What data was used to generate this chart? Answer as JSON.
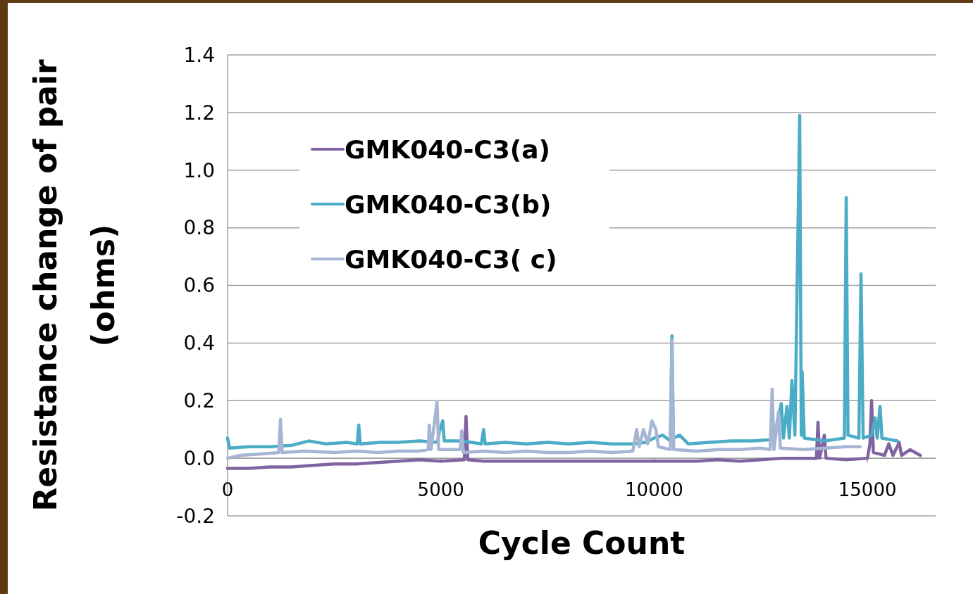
{
  "chart_data": {
    "type": "line",
    "xlabel": "Cycle Count",
    "ylabel": "Resistance change of pair\n(ohms)",
    "xlim": [
      0,
      16600
    ],
    "xticks": [
      0,
      5000,
      10000,
      15000
    ],
    "ylim": [
      -0.2,
      1.4
    ],
    "yticks": [
      {
        "value": -0.2,
        "label": "-0.2"
      },
      {
        "value": 0,
        "label": "0.0"
      },
      {
        "value": 0.2,
        "label": "0.2"
      },
      {
        "value": 0.4,
        "label": "0.4"
      },
      {
        "value": 0.6,
        "label": "0.6"
      },
      {
        "value": 0.8,
        "label": "0.8"
      },
      {
        "value": 1.0,
        "label": "1.0"
      },
      {
        "value": 1.2,
        "label": "1.2"
      },
      {
        "value": 1.4,
        "label": "1.4"
      }
    ],
    "grid": "y",
    "legend": "top left",
    "marker": "none",
    "line_style": "solid",
    "series": [
      {
        "name": "GMK040-C3(a)",
        "color": "#8064a2",
        "x": [
          0,
          500,
          1000,
          1500,
          2000,
          2500,
          3000,
          3500,
          4000,
          4500,
          5000,
          5550,
          5590,
          5630,
          6000,
          7000,
          8000,
          9000,
          10000,
          11000,
          11500,
          12000,
          12500,
          13000,
          13500,
          13805,
          13842,
          13880,
          13990,
          14030,
          14500,
          15000,
          15060,
          15098,
          15140,
          15400,
          15500,
          15600,
          15744,
          15800,
          16000,
          16240
        ],
        "values": [
          -0.035,
          -0.035,
          -0.03,
          -0.03,
          -0.025,
          -0.02,
          -0.02,
          -0.015,
          -0.01,
          -0.005,
          -0.01,
          -0.005,
          0.145,
          -0.005,
          -0.01,
          -0.01,
          -0.01,
          -0.01,
          -0.01,
          -0.01,
          -0.005,
          -0.01,
          -0.005,
          0.0,
          0.0,
          0.0,
          0.125,
          0.0,
          0.08,
          0.0,
          -0.005,
          0.0,
          0.05,
          0.2,
          0.02,
          0.01,
          0.05,
          0.01,
          0.055,
          0.01,
          0.03,
          0.01
        ]
      },
      {
        "name": "GMK040-C3(b)",
        "color": "#4bacc6",
        "x": [
          0,
          50,
          500,
          1000,
          1500,
          1900,
          2300,
          2800,
          3040,
          3076,
          3110,
          3600,
          4000,
          4500,
          4920,
          4960,
          5044,
          5080,
          5500,
          5950,
          6003,
          6040,
          6500,
          7000,
          7500,
          8000,
          8500,
          9000,
          9500,
          9800,
          10000,
          10200,
          10380,
          10418,
          10450,
          10600,
          10800,
          11300,
          11800,
          12300,
          12800,
          12982,
          13030,
          13114,
          13170,
          13230,
          13300,
          13412,
          13450,
          13470,
          13520,
          14000,
          14460,
          14503,
          14545,
          14800,
          14850,
          14900,
          15100,
          15180,
          15230,
          15297,
          15340,
          15700
        ],
        "values": [
          0.07,
          0.035,
          0.04,
          0.04,
          0.045,
          0.06,
          0.05,
          0.055,
          0.05,
          0.115,
          0.05,
          0.055,
          0.055,
          0.06,
          0.055,
          0.09,
          0.13,
          0.06,
          0.06,
          0.05,
          0.1,
          0.05,
          0.055,
          0.05,
          0.055,
          0.05,
          0.055,
          0.05,
          0.05,
          0.055,
          0.07,
          0.08,
          0.06,
          0.425,
          0.07,
          0.08,
          0.05,
          0.055,
          0.06,
          0.06,
          0.065,
          0.19,
          0.07,
          0.18,
          0.07,
          0.27,
          0.08,
          1.19,
          0.08,
          0.3,
          0.07,
          0.06,
          0.07,
          0.905,
          0.08,
          0.07,
          0.64,
          0.07,
          0.08,
          0.14,
          0.07,
          0.18,
          0.07,
          0.06
        ]
      },
      {
        "name": "GMK040-C3( c)",
        "color": "#a5b5d3",
        "x": [
          0,
          300,
          800,
          1200,
          1240,
          1280,
          1800,
          2500,
          3000,
          3500,
          4000,
          4500,
          4700,
          4730,
          4770,
          4910,
          4950,
          5450,
          5490,
          5530,
          6000,
          6500,
          7000,
          7500,
          8000,
          8500,
          9000,
          9500,
          9590,
          9650,
          9750,
          9850,
          9950,
          10040,
          10100,
          10380,
          10418,
          10460,
          11000,
          11500,
          12000,
          12500,
          12720,
          12767,
          12810,
          12915,
          12960,
          13500,
          14000,
          14500,
          14830
        ],
        "values": [
          0.0,
          0.01,
          0.015,
          0.02,
          0.135,
          0.02,
          0.025,
          0.02,
          0.025,
          0.02,
          0.025,
          0.025,
          0.03,
          0.115,
          0.03,
          0.195,
          0.03,
          0.03,
          0.095,
          0.02,
          0.025,
          0.02,
          0.025,
          0.02,
          0.02,
          0.025,
          0.02,
          0.025,
          0.1,
          0.04,
          0.1,
          0.05,
          0.13,
          0.1,
          0.04,
          0.03,
          0.41,
          0.03,
          0.025,
          0.03,
          0.03,
          0.035,
          0.03,
          0.24,
          0.03,
          0.16,
          0.035,
          0.03,
          0.035,
          0.04,
          0.04
        ]
      }
    ]
  }
}
